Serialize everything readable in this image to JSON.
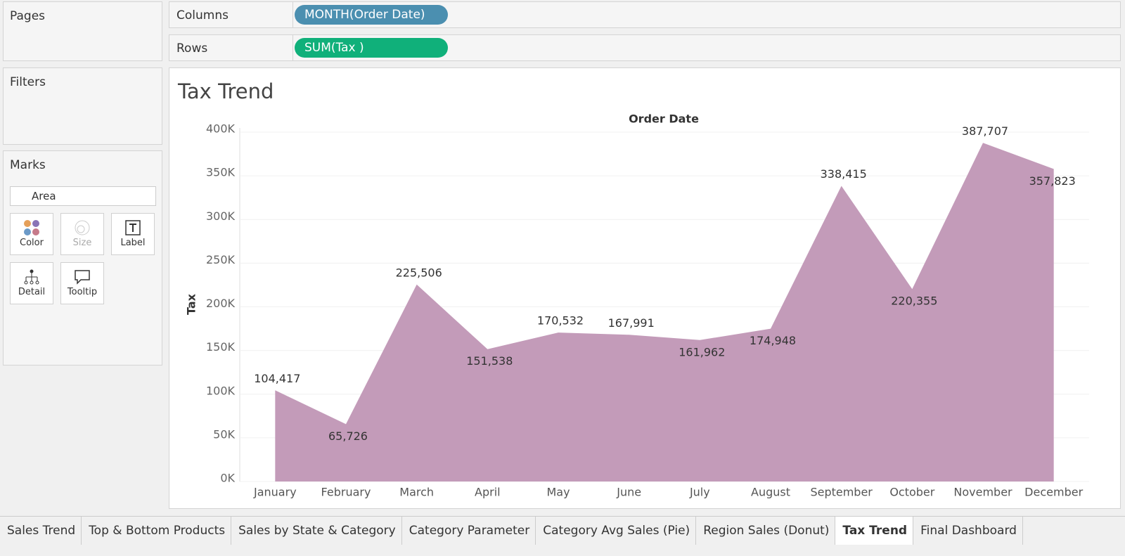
{
  "panels": {
    "pages": "Pages",
    "filters": "Filters",
    "marks": "Marks",
    "mark_type": "Area",
    "mark_buttons": [
      "Color",
      "Size",
      "Label",
      "Detail",
      "Tooltip"
    ]
  },
  "shelves": {
    "columns_label": "Columns",
    "columns_pill": "MONTH(Order Date)",
    "rows_label": "Rows",
    "rows_pill": "SUM(Tax )"
  },
  "chart_data": {
    "type": "area",
    "title": "Tax Trend",
    "x_header": "Order Date",
    "y_label": "Tax",
    "color": "#c39bb9",
    "categories": [
      "January",
      "February",
      "March",
      "April",
      "May",
      "June",
      "July",
      "August",
      "September",
      "October",
      "November",
      "December"
    ],
    "values": [
      104417,
      65726,
      225506,
      151538,
      170532,
      167991,
      161962,
      174948,
      338415,
      220355,
      387707,
      357823
    ],
    "value_labels": [
      "104,417",
      "65,726",
      "225,506",
      "151,538",
      "170,532",
      "167,991",
      "161,962",
      "174,948",
      "338,415",
      "220,355",
      "387,707",
      "357,823"
    ],
    "ylim": [
      0,
      400000
    ],
    "yticks": [
      {
        "value": 0,
        "label": "0K"
      },
      {
        "value": 50000,
        "label": "50K"
      },
      {
        "value": 100000,
        "label": "100K"
      },
      {
        "value": 150000,
        "label": "150K"
      },
      {
        "value": 200000,
        "label": "200K"
      },
      {
        "value": 250000,
        "label": "250K"
      },
      {
        "value": 300000,
        "label": "300K"
      },
      {
        "value": 350000,
        "label": "350K"
      },
      {
        "value": 400000,
        "label": "400K"
      }
    ],
    "grid": true
  },
  "tabs": [
    "Sales Trend",
    "Top & Bottom Products",
    "Sales by State & Category",
    "Category Parameter",
    "Category Avg Sales (Pie)",
    "Region Sales (Donut)",
    "Tax Trend",
    "Final Dashboard"
  ],
  "active_tab": 6
}
